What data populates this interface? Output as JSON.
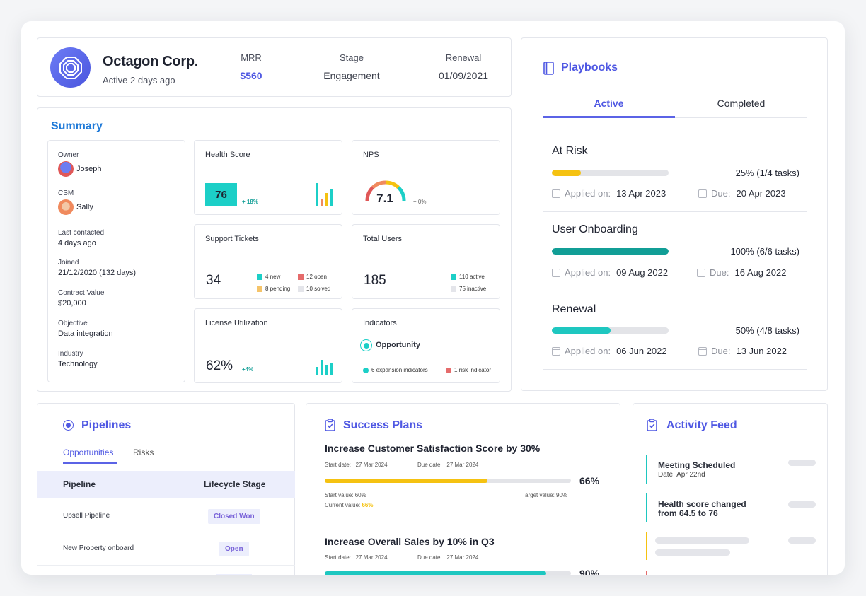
{
  "header": {
    "company": "Octagon Corp.",
    "status": "Active 2 days ago",
    "mrr_label": "MRR",
    "mrr_value": "$560",
    "stage_label": "Stage",
    "stage_value": "Engagement",
    "renewal_label": "Renewal",
    "renewal_value": "01/09/2021"
  },
  "summary": {
    "title": "Summary",
    "info": [
      {
        "key": "Owner",
        "value": "Joseph"
      },
      {
        "key": "CSM",
        "value": "Sally"
      },
      {
        "key": "Last contacted",
        "value": "4 days ago"
      },
      {
        "key": "Joined",
        "value": "21/12/2020 (132 days)"
      },
      {
        "key": "Contract Value",
        "value": "$20,000"
      },
      {
        "key": "Objective",
        "value": "Data integration"
      },
      {
        "key": "Industry",
        "value": "Technology"
      }
    ],
    "health": {
      "title": "Health Score",
      "value": "76",
      "delta": "+ 18%"
    },
    "nps": {
      "title": "NPS",
      "value": "7.1",
      "delta": "+ 0%"
    },
    "tickets": {
      "title": "Support Tickets",
      "value": "34",
      "new": "4 new",
      "open": "12 open",
      "pending": "8 pending",
      "solved": "10 solved"
    },
    "users": {
      "title": "Total Users",
      "value": "185",
      "active": "110 active",
      "inactive": "75 inactive"
    },
    "license": {
      "title": "License Utilization",
      "value": "62%",
      "delta": "+4%"
    },
    "indicators": {
      "title": "Indicators",
      "label": "Opportunity",
      "expansion": "6 expansion indicators",
      "risk": "1 risk Indicator"
    }
  },
  "playbooks": {
    "title": "Playbooks",
    "tabs": [
      "Active",
      "Completed"
    ],
    "applied_label": "Applied on:",
    "due_label": "Due:",
    "items": [
      {
        "name": "At Risk",
        "progress": 0.25,
        "pct_text": "25% (1/4 tasks)",
        "applied": "13 Apr 2023",
        "due": "20 Apr 2023",
        "color": "#f5c211"
      },
      {
        "name": "User Onboarding",
        "progress": 1.0,
        "pct_text": "100% (6/6 tasks)",
        "applied": "09 Aug 2022",
        "due": "16 Aug 2022",
        "color": "#119e96"
      },
      {
        "name": "Renewal",
        "progress": 0.5,
        "pct_text": "50% (4/8 tasks)",
        "applied": "06 Jun 2022",
        "due": "13 Jun 2022",
        "color": "#1ec7c0"
      }
    ]
  },
  "pipelines": {
    "title": "Pipelines",
    "tabs": [
      "Opportunities",
      "Risks"
    ],
    "col_pipeline": "Pipeline",
    "col_stage": "Lifecycle Stage",
    "rows": [
      {
        "name": "Upsell Pipeline",
        "stage": "Closed Won"
      },
      {
        "name": "New Property onboard",
        "stage": "Open"
      }
    ]
  },
  "success_plans": {
    "title": "Success Plans",
    "start_label": "Start date:",
    "due_label": "Due date:",
    "start_value_label": "Start value:",
    "target_value_label": "Target value:",
    "current_value_label": "Current value:",
    "plans": [
      {
        "title": "Increase Customer Satisfaction Score by 30%",
        "start": "27 Mar 2024",
        "due": "27 Mar 2024",
        "progress": 0.66,
        "pct": "66%",
        "start_value": "60%",
        "target_value": "90%",
        "current_value": "66%",
        "color": "#f5c211"
      },
      {
        "title": "Increase Overall Sales by 10% in Q3",
        "start": "27 Mar 2024",
        "due": "27 Mar 2024",
        "progress": 0.9,
        "pct": "90%",
        "color": "#1ec7c0"
      }
    ]
  },
  "activity": {
    "title": "Activity Feed",
    "items": [
      {
        "title": "Meeting Scheduled",
        "sub": "Date: Apr 22nd"
      },
      {
        "title": "Health score changed from 64.5 to 76"
      }
    ]
  }
}
